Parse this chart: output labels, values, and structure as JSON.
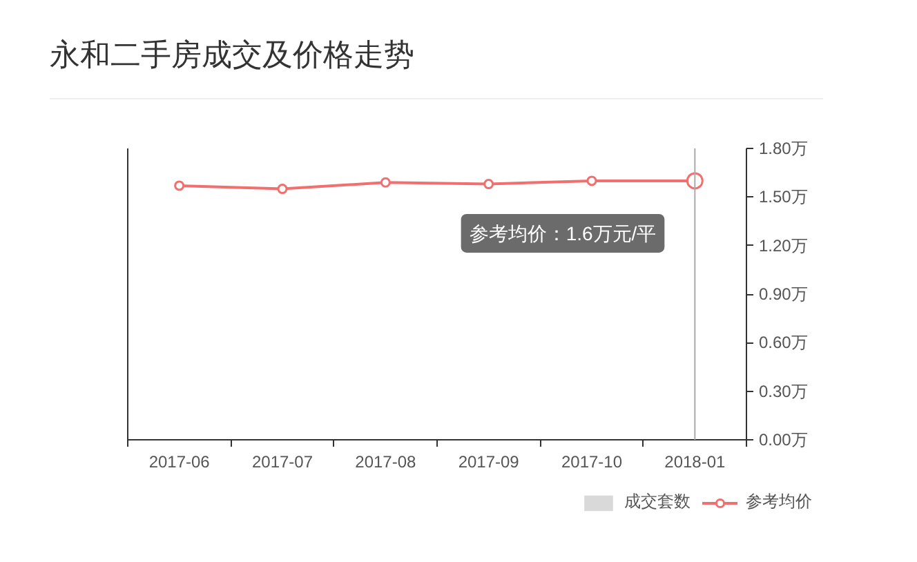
{
  "chart_data": {
    "type": "line",
    "title": "永和二手房成交及价格走势",
    "categories": [
      "2017-06",
      "2017-07",
      "2017-08",
      "2017-09",
      "2017-10",
      "2018-01"
    ],
    "series": [
      {
        "name": "成交套数",
        "type": "bar",
        "color": "#d9d9d9",
        "values": [
          null,
          null,
          null,
          null,
          null,
          null
        ]
      },
      {
        "name": "参考均价",
        "color": "#f07070",
        "values": [
          1.57,
          1.55,
          1.59,
          1.58,
          1.6,
          1.6
        ]
      }
    ],
    "ylim": [
      0,
      1.8
    ],
    "yticks": [
      {
        "value": 0,
        "label": "0.00万"
      },
      {
        "value": 0.3,
        "label": "0.30万"
      },
      {
        "value": 0.6,
        "label": "0.60万"
      },
      {
        "value": 0.9,
        "label": "0.90万"
      },
      {
        "value": 1.2,
        "label": "1.20万"
      },
      {
        "value": 1.5,
        "label": "1.50万"
      },
      {
        "value": 1.8,
        "label": "1.80万"
      }
    ],
    "marker": "circle",
    "grid": false,
    "legend": "bottom right",
    "ref_lines": [
      {
        "axis": "x",
        "value": "2018-01",
        "color": "#aaaaaa"
      }
    ],
    "annotations": [
      {
        "text": "参考均价：1.6万元/平",
        "x": "2018-01",
        "y": 1.6
      }
    ]
  }
}
